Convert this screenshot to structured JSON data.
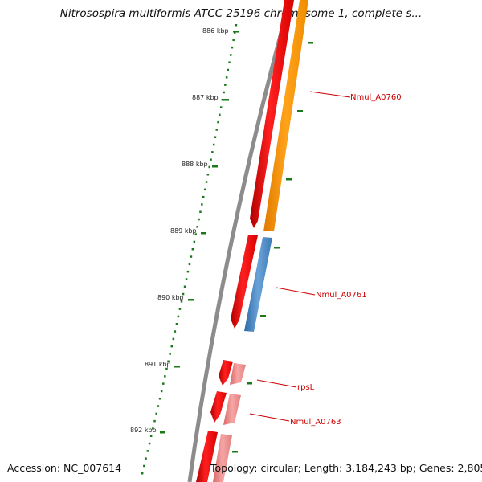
{
  "title": "Nitrosospira multiformis ATCC 25196 chromosome 1, complete s...",
  "footer": {
    "accession": "Accession: NC_007614",
    "topology": "Topology: circular; Length: 3,184,243 bp; Genes: 2,805"
  },
  "scale_labels": [
    "886 kbp",
    "887 kbp",
    "888 kbp",
    "889 kbp",
    "890 kbp",
    "891 kbp",
    "892 kbp"
  ],
  "gene_labels": [
    "Nmul_A0760",
    "Nmul_A0761",
    "rpsL",
    "Nmul_A0763"
  ],
  "colors": {
    "backbone": "#8a8a8a",
    "forward_gene": "#ee1111",
    "reverse_gene_orange": "#ff9a00",
    "reverse_gene_blue": "#4a86c0",
    "reverse_gene_pink": "#ee8888",
    "tick": "#1a7a1a",
    "label": "#cc0000"
  }
}
